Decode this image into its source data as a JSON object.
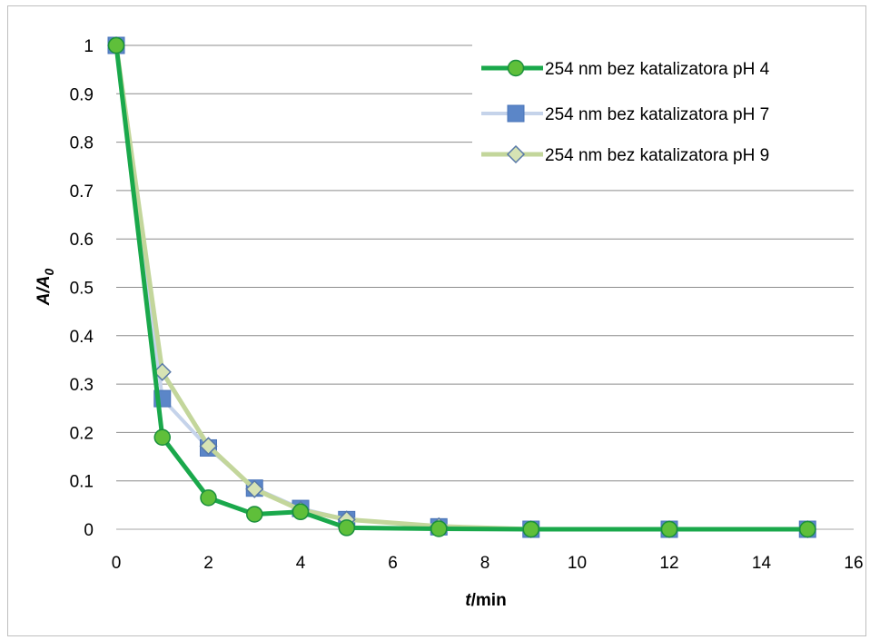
{
  "chart_data": {
    "type": "line",
    "xlabel_italic": "t",
    "xlabel_rest": "/min",
    "ylabel_main": "A/A",
    "ylabel_sub": "0",
    "xlim": [
      0,
      16
    ],
    "ylim": [
      0,
      1
    ],
    "xticks": [
      "0",
      "2",
      "4",
      "6",
      "8",
      "10",
      "12",
      "14",
      "16"
    ],
    "yticks": [
      "0",
      "0.1",
      "0.2",
      "0.3",
      "0.4",
      "0.5",
      "0.6",
      "0.7",
      "0.8",
      "0.9",
      "1"
    ],
    "grid": "horizontal",
    "legend_position": "top-right",
    "series": [
      {
        "name": "254 nm bez katalizatora pH 4",
        "marker": "circle",
        "line_color": "#1aa84b",
        "marker_fill": "#5fbf3a",
        "marker_stroke": "#1a8f3c",
        "points": [
          [
            0,
            1
          ],
          [
            1,
            0.19
          ],
          [
            2,
            0.065
          ],
          [
            3,
            0.031
          ],
          [
            4,
            0.036
          ],
          [
            5,
            0.003
          ],
          [
            7,
            0.001
          ],
          [
            9,
            0
          ],
          [
            12,
            0
          ],
          [
            15,
            0
          ]
        ]
      },
      {
        "name": "254 nm bez katalizatora pH 7",
        "marker": "square",
        "line_color": "#c5d3ea",
        "marker_fill": "#5b86c8",
        "marker_stroke": "#4a74b8",
        "points": [
          [
            0,
            1
          ],
          [
            1,
            0.27
          ],
          [
            2,
            0.168
          ],
          [
            3,
            0.085
          ],
          [
            4,
            0.043
          ],
          [
            5,
            0.02
          ],
          [
            7,
            0.005
          ],
          [
            9,
            0
          ],
          [
            12,
            0
          ],
          [
            15,
            0
          ]
        ]
      },
      {
        "name": "254 nm bez katalizatora pH 9",
        "marker": "diamond",
        "line_color": "#c3d69b",
        "marker_fill": "#d6e3b4",
        "marker_stroke": "#5778a8",
        "points": [
          [
            0,
            1
          ],
          [
            1,
            0.325
          ],
          [
            2,
            0.172
          ],
          [
            3,
            0.083
          ],
          [
            4,
            0.04
          ],
          [
            5,
            0.02
          ],
          [
            7,
            0.006
          ],
          [
            9,
            0
          ],
          [
            12,
            0
          ],
          [
            15,
            0
          ]
        ]
      }
    ]
  }
}
